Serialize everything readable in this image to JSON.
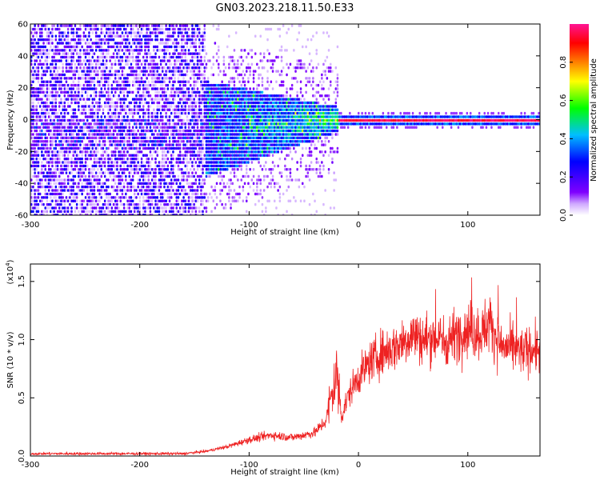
{
  "title": "GN03.2023.218.11.50.E33",
  "chart_data": [
    {
      "type": "heatmap",
      "xlabel": "Height of straight line (km)",
      "ylabel": "Frequency (Hz)",
      "xlim": [
        -300,
        166
      ],
      "ylim": [
        -60,
        60
      ],
      "x_ticks": [
        -300,
        -200,
        -100,
        0,
        100
      ],
      "y_ticks": [
        -60,
        -40,
        -20,
        0,
        20,
        40,
        60
      ],
      "grid": false,
      "colorbar": {
        "label": "Normalized spectral amplitude",
        "range": [
          0,
          1
        ],
        "ticks": [
          "0.0",
          "0.2",
          "0.4",
          "0.6",
          "0.8"
        ],
        "colormap": [
          "#ffffff",
          "#7f00ff",
          "#0000ff",
          "#00bfff",
          "#00ff00",
          "#ffff00",
          "#ff7f00",
          "#ff0000",
          "#ff0080"
        ]
      },
      "description_of_content": [
        {
          "x_range": [
            -300,
            -140
          ],
          "freq_range": [
            -60,
            60
          ],
          "amplitude": "low (0.05-0.25), diffuse noise"
        },
        {
          "x_range": [
            -140,
            -20
          ],
          "freq_range": [
            -20,
            10
          ],
          "amplitude": "0.2-0.55, narrowing band"
        },
        {
          "x_range": [
            -20,
            166
          ],
          "freq_range": [
            -3,
            3
          ],
          "amplitude": "~0.9-1.0, narrow line at 0 Hz"
        }
      ]
    },
    {
      "type": "line",
      "xlabel": "Height of straight line (km)",
      "ylabel": "SNR (10 * v/v)",
      "y_scale_label": "(x10",
      "y_scale_exponent": "4",
      "xlim": [
        -300,
        166
      ],
      "ylim": [
        0,
        1.65
      ],
      "x_ticks": [
        -300,
        -200,
        -100,
        0,
        100
      ],
      "y_ticks": [
        "0.0",
        "0.5",
        "1.0",
        "1.5"
      ],
      "grid": false,
      "series": [
        {
          "color": "#ee2222",
          "x": [
            -300,
            -250,
            -200,
            -160,
            -140,
            -120,
            -100,
            -80,
            -60,
            -40,
            -30,
            -25,
            -20,
            -15,
            -10,
            -5,
            0,
            10,
            20,
            30,
            40,
            50,
            60,
            70,
            80,
            90,
            100,
            110,
            120,
            130,
            140,
            150,
            160,
            166
          ],
          "y": [
            0.02,
            0.02,
            0.02,
            0.02,
            0.04,
            0.08,
            0.14,
            0.18,
            0.16,
            0.2,
            0.3,
            0.5,
            0.7,
            0.35,
            0.5,
            0.6,
            0.68,
            0.8,
            0.88,
            0.92,
            0.98,
            1.05,
            1.0,
            1.02,
            0.98,
            1.05,
            1.1,
            1.05,
            1.15,
            0.95,
            0.92,
            0.9,
            0.92,
            0.9
          ]
        }
      ]
    }
  ]
}
